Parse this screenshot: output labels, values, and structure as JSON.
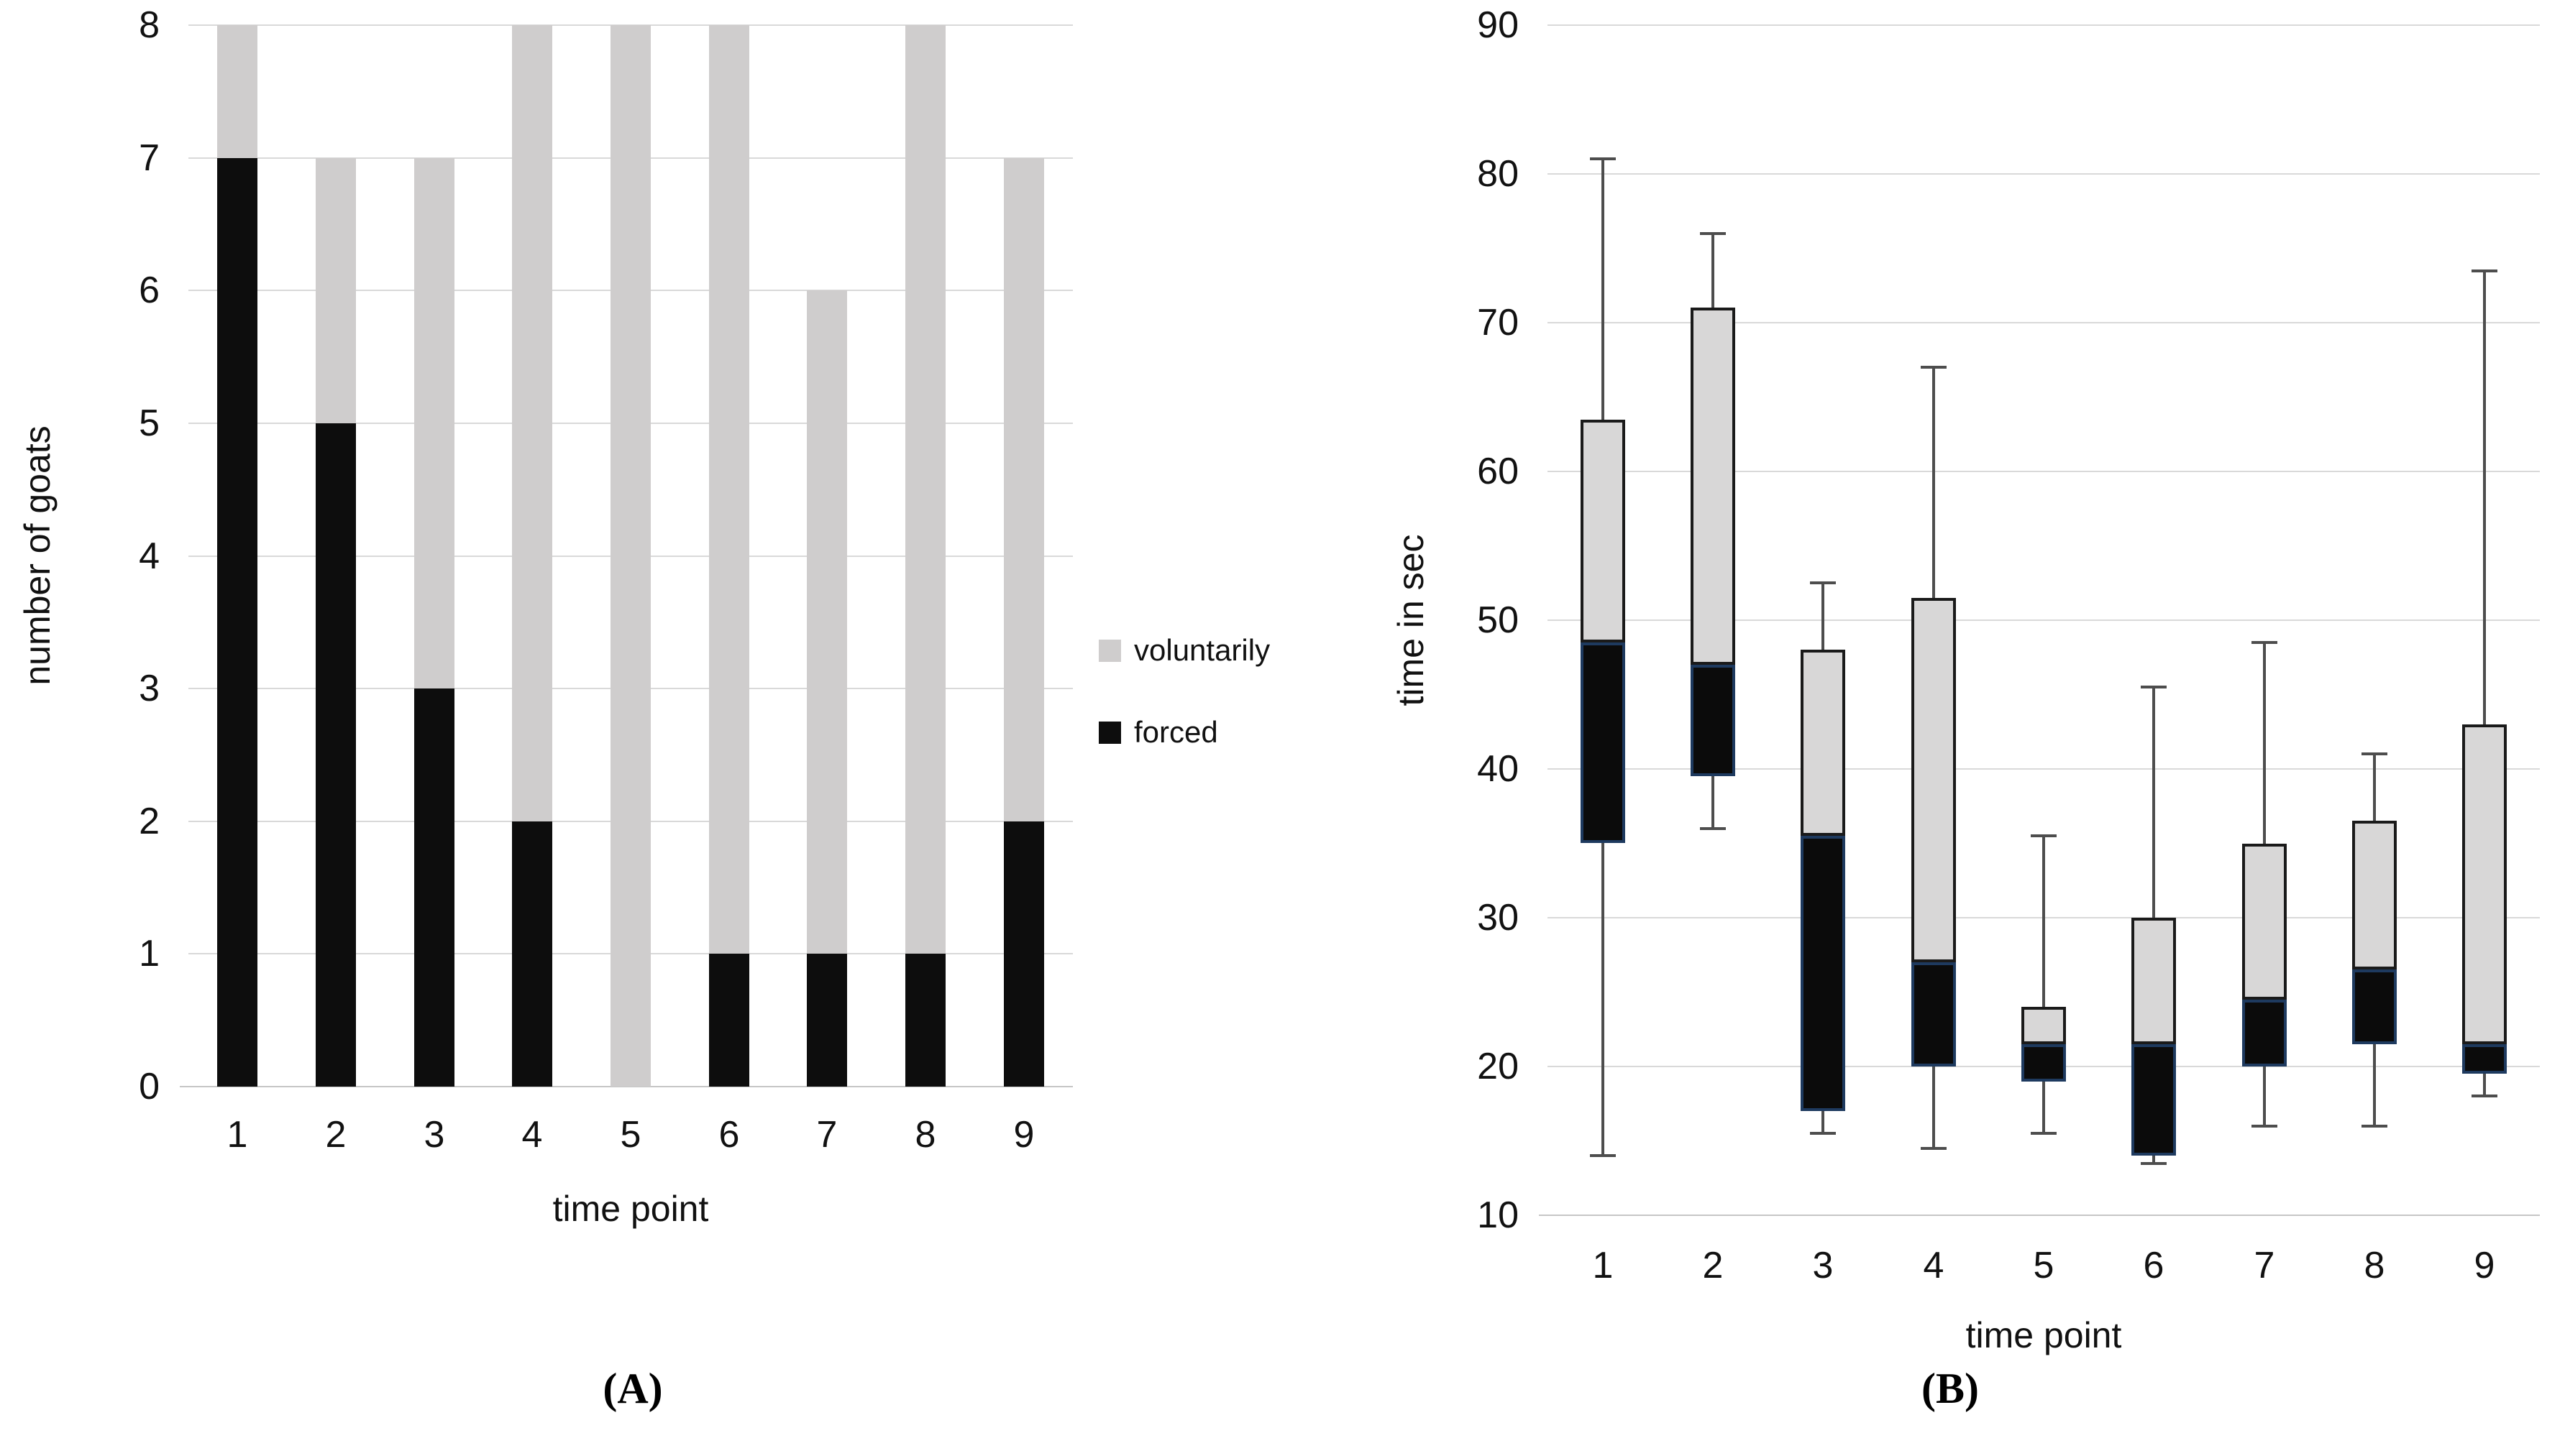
{
  "figure": {
    "caption_a": "(A)",
    "caption_b": "(B)"
  },
  "legend": {
    "items": [
      {
        "label": "voluntarily",
        "color": "#cfcdcd"
      },
      {
        "label": "forced",
        "color": "#0d0d0d"
      }
    ]
  },
  "colors": {
    "voluntarily": "#cfcdcd",
    "forced": "#0d0d0d",
    "box_gray_fill": "#d8d7d7",
    "box_gray_outline": "#1a1a1a",
    "box_black_fill": "#0b0b0b",
    "box_black_outline": "#1e3a5f",
    "gridline": "#d9d9d9",
    "axis_baseline": "#c6c6c6",
    "whisker": "#4d4d4d",
    "text": "#111111"
  },
  "chart_data": [
    {
      "id": "A",
      "type": "bar",
      "stacked": true,
      "title": "",
      "xlabel": "time point",
      "ylabel": "number of goats",
      "categories": [
        "1",
        "2",
        "3",
        "4",
        "5",
        "6",
        "7",
        "8",
        "9"
      ],
      "series": [
        {
          "name": "forced",
          "color_key": "forced",
          "values": [
            7,
            5,
            3,
            2,
            0,
            1,
            1,
            1,
            2
          ]
        },
        {
          "name": "voluntarily",
          "color_key": "voluntarily",
          "values": [
            1,
            2,
            4,
            6,
            8,
            7,
            5,
            7,
            5
          ]
        }
      ],
      "ylim": [
        0,
        8
      ],
      "yticks": [
        0,
        1,
        2,
        3,
        4,
        5,
        6,
        7,
        8
      ],
      "grid": true,
      "legend_position": "right-of-plot",
      "legend_order": [
        "voluntarily",
        "forced"
      ]
    },
    {
      "id": "B",
      "type": "box",
      "title": "",
      "xlabel": "time point",
      "ylabel": "time in sec",
      "categories": [
        "1",
        "2",
        "3",
        "4",
        "5",
        "6",
        "7",
        "8",
        "9"
      ],
      "ylim": [
        10,
        90
      ],
      "yticks": [
        10,
        20,
        30,
        40,
        50,
        60,
        70,
        80,
        90
      ],
      "grid": true,
      "box_note": "lower box segment (q1 to median) is black, upper segment (median to q3) is gray, whiskers span low to high",
      "boxes": [
        {
          "low": 14,
          "q1": 35,
          "median": 48.5,
          "q3": 63.5,
          "high": 81
        },
        {
          "low": 36,
          "q1": 39.5,
          "median": 47,
          "q3": 71,
          "high": 76
        },
        {
          "low": 15.5,
          "q1": 17,
          "median": 35.5,
          "q3": 48,
          "high": 52.5
        },
        {
          "low": 14.5,
          "q1": 20,
          "median": 27,
          "q3": 51.5,
          "high": 67
        },
        {
          "low": 15.5,
          "q1": 19,
          "median": 21.5,
          "q3": 24,
          "high": 35.5
        },
        {
          "low": 13.5,
          "q1": 14,
          "median": 21.5,
          "q3": 30,
          "high": 45.5
        },
        {
          "low": 16,
          "q1": 20,
          "median": 24.5,
          "q3": 35,
          "high": 48.5
        },
        {
          "low": 16,
          "q1": 21.5,
          "median": 26.5,
          "q3": 36.5,
          "high": 41
        },
        {
          "low": 18,
          "q1": 19.5,
          "median": 21.5,
          "q3": 43,
          "high": 73.5
        }
      ]
    }
  ]
}
